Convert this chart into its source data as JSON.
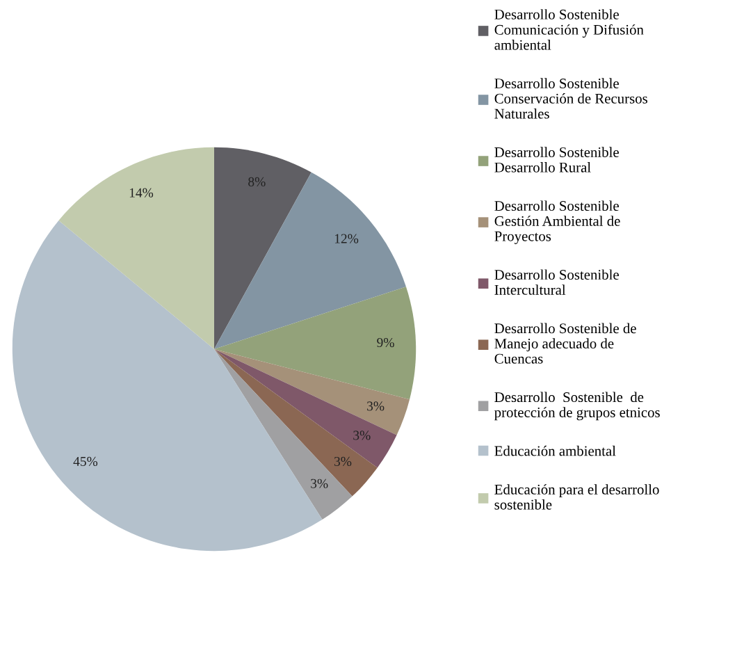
{
  "chart_data": {
    "type": "pie",
    "categories": [
      "Desarrollo Sostenible\nComunicación y Difusión\nambiental",
      "Desarrollo Sostenible\nConservación de Recursos\nNaturales",
      "Desarrollo Sostenible\nDesarrollo Rural",
      "Desarrollo Sostenible\nGestión Ambiental de\nProyectos",
      "Desarrollo Sostenible\nIntercultural",
      "Desarrollo Sostenible de\nManejo adecuado de\nCuencas",
      "Desarrollo  Sostenible  de\nprotección de grupos etnicos",
      "Educación ambiental",
      "Educación para el desarrollo\nsostenible"
    ],
    "values": [
      8,
      12,
      9,
      3,
      3,
      3,
      3,
      45,
      14
    ],
    "colors": [
      "#605f64",
      "#8395a3",
      "#93a27a",
      "#a59179",
      "#7f5869",
      "#8b6753",
      "#a0a0a2",
      "#b4c1cc",
      "#c2cbad"
    ],
    "value_labels": [
      "8%",
      "12%",
      "9%",
      "3%",
      "3%",
      "3%",
      "3%",
      "45%",
      "14%"
    ],
    "legend": "right"
  }
}
